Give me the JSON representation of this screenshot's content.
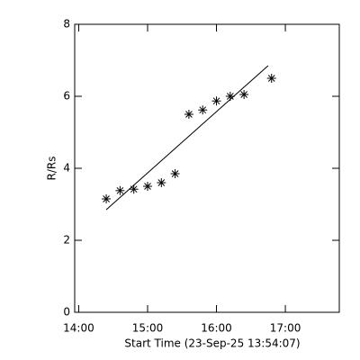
{
  "chart_data": {
    "type": "scatter",
    "xlabel": "Start Time (23-Sep-25 13:54:07)",
    "ylabel": "R/Rs",
    "x": [
      864,
      876,
      888,
      900,
      912,
      924,
      936,
      948,
      960,
      972,
      984,
      1008
    ],
    "series": [
      {
        "values": [
          3.15,
          3.38,
          3.42,
          3.5,
          3.6,
          3.85,
          5.5,
          5.62,
          5.87,
          6.0,
          6.05,
          6.5
        ],
        "color": "#000000"
      }
    ],
    "fit": {
      "x": [
        864,
        1005
      ],
      "y": [
        2.85,
        6.85
      ],
      "color": "#000000"
    },
    "xlim": [
      836.5,
      1067
    ],
    "xticks": [
      {
        "value": 840,
        "label": "14:00"
      },
      {
        "value": 900,
        "label": "15:00"
      },
      {
        "value": 960,
        "label": "16:00"
      },
      {
        "value": 1020,
        "label": "17:00"
      }
    ],
    "ylim": [
      0,
      8
    ],
    "yticks": [
      0,
      2,
      4,
      6,
      8
    ]
  }
}
